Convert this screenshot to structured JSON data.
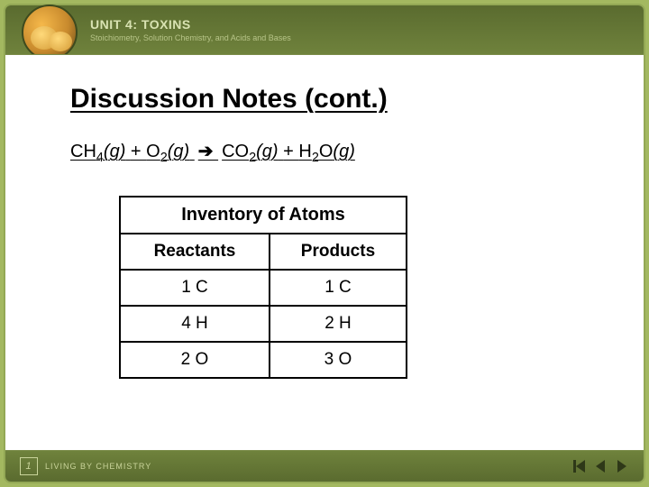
{
  "header": {
    "unit_label": "UNIT 4:",
    "unit_topic": "TOXINS",
    "subtitle": "Stoichiometry, Solution Chemistry, and Acids and Bases"
  },
  "content": {
    "title": "Discussion Notes (cont.)",
    "equation": {
      "r1_base": "CH",
      "r1_sub": "4",
      "r1_state": "(g)",
      "plus1": " + ",
      "r2_base": "O",
      "r2_sub": "2",
      "r2_state": "(g)",
      "arrow": " ➔ ",
      "p1_base": "CO",
      "p1_sub": "2",
      "p1_state": "(g)",
      "plus2": " + ",
      "p2_base": "H",
      "p2_sub": "2",
      "p2_mid": "O",
      "p2_state": "(g)"
    },
    "table": {
      "title": "Inventory of Atoms",
      "col_reactants": "Reactants",
      "col_products": "Products",
      "rows": [
        {
          "reactants": "1 C",
          "products": "1 C"
        },
        {
          "reactants": "4 H",
          "products": "2 H"
        },
        {
          "reactants": "2 O",
          "products": "3 O"
        }
      ]
    }
  },
  "footer": {
    "brand": "LIVING BY CHEMISTRY",
    "mark": "1"
  },
  "colors": {
    "background": "#a3b860",
    "band_dark": "#5a6b2f",
    "band_light": "#6f823c",
    "panel": "#ffffff",
    "text": "#000000",
    "nav_icon": "#2e3818"
  }
}
